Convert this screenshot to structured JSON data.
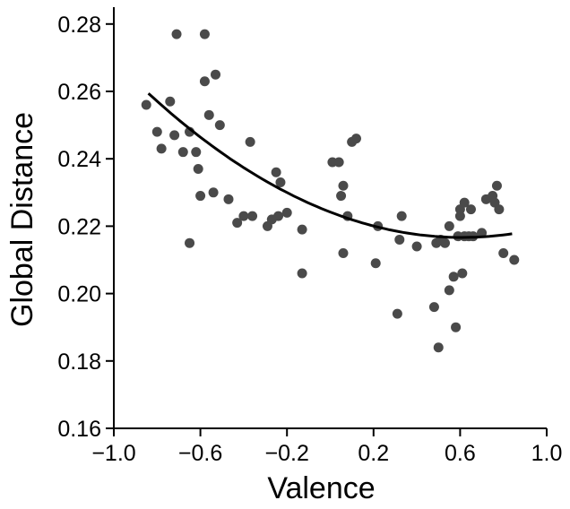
{
  "chart_data": {
    "type": "scatter",
    "title": "",
    "xlabel": "Valence",
    "ylabel": "Global Distance",
    "xlim": [
      -1.0,
      1.0
    ],
    "ylim": [
      0.16,
      0.285
    ],
    "xticks": [
      -1.0,
      -0.6,
      -0.2,
      0.2,
      0.6,
      1.0
    ],
    "xtick_labels": [
      "−1.0",
      "−0.6",
      "−0.2",
      "0.2",
      "0.6",
      "1.0"
    ],
    "yticks": [
      0.16,
      0.18,
      0.2,
      0.22,
      0.24,
      0.26,
      0.28
    ],
    "ytick_labels": [
      "0.16",
      "0.18",
      "0.20",
      "0.22",
      "0.24",
      "0.26",
      "0.28"
    ],
    "grid": false,
    "legend": "none",
    "colors": {
      "points": "#4a4a4a",
      "fit_line": "#000000",
      "axes": "#000000"
    },
    "points": [
      {
        "x": -0.85,
        "y": 0.256
      },
      {
        "x": -0.8,
        "y": 0.248
      },
      {
        "x": -0.78,
        "y": 0.243
      },
      {
        "x": -0.74,
        "y": 0.257
      },
      {
        "x": -0.72,
        "y": 0.247
      },
      {
        "x": -0.71,
        "y": 0.277
      },
      {
        "x": -0.68,
        "y": 0.242
      },
      {
        "x": -0.65,
        "y": 0.248
      },
      {
        "x": -0.65,
        "y": 0.215
      },
      {
        "x": -0.62,
        "y": 0.242
      },
      {
        "x": -0.61,
        "y": 0.237
      },
      {
        "x": -0.6,
        "y": 0.229
      },
      {
        "x": -0.58,
        "y": 0.263
      },
      {
        "x": -0.58,
        "y": 0.277
      },
      {
        "x": -0.56,
        "y": 0.253
      },
      {
        "x": -0.54,
        "y": 0.23
      },
      {
        "x": -0.53,
        "y": 0.265
      },
      {
        "x": -0.51,
        "y": 0.25
      },
      {
        "x": -0.47,
        "y": 0.228
      },
      {
        "x": -0.43,
        "y": 0.221
      },
      {
        "x": -0.4,
        "y": 0.223
      },
      {
        "x": -0.37,
        "y": 0.245
      },
      {
        "x": -0.36,
        "y": 0.223
      },
      {
        "x": -0.29,
        "y": 0.22
      },
      {
        "x": -0.27,
        "y": 0.222
      },
      {
        "x": -0.25,
        "y": 0.236
      },
      {
        "x": -0.24,
        "y": 0.223
      },
      {
        "x": -0.23,
        "y": 0.233
      },
      {
        "x": -0.2,
        "y": 0.224
      },
      {
        "x": -0.13,
        "y": 0.206
      },
      {
        "x": -0.13,
        "y": 0.219
      },
      {
        "x": 0.01,
        "y": 0.239
      },
      {
        "x": 0.04,
        "y": 0.239
      },
      {
        "x": 0.05,
        "y": 0.229
      },
      {
        "x": 0.06,
        "y": 0.232
      },
      {
        "x": 0.06,
        "y": 0.212
      },
      {
        "x": 0.08,
        "y": 0.223
      },
      {
        "x": 0.1,
        "y": 0.245
      },
      {
        "x": 0.12,
        "y": 0.246
      },
      {
        "x": 0.21,
        "y": 0.209
      },
      {
        "x": 0.22,
        "y": 0.22
      },
      {
        "x": 0.31,
        "y": 0.194
      },
      {
        "x": 0.32,
        "y": 0.216
      },
      {
        "x": 0.33,
        "y": 0.223
      },
      {
        "x": 0.4,
        "y": 0.214
      },
      {
        "x": 0.48,
        "y": 0.196
      },
      {
        "x": 0.49,
        "y": 0.215
      },
      {
        "x": 0.5,
        "y": 0.184
      },
      {
        "x": 0.51,
        "y": 0.216
      },
      {
        "x": 0.53,
        "y": 0.215
      },
      {
        "x": 0.55,
        "y": 0.22
      },
      {
        "x": 0.55,
        "y": 0.201
      },
      {
        "x": 0.57,
        "y": 0.205
      },
      {
        "x": 0.58,
        "y": 0.19
      },
      {
        "x": 0.59,
        "y": 0.217
      },
      {
        "x": 0.6,
        "y": 0.223
      },
      {
        "x": 0.6,
        "y": 0.225
      },
      {
        "x": 0.61,
        "y": 0.206
      },
      {
        "x": 0.62,
        "y": 0.217
      },
      {
        "x": 0.62,
        "y": 0.227
      },
      {
        "x": 0.64,
        "y": 0.217
      },
      {
        "x": 0.65,
        "y": 0.225
      },
      {
        "x": 0.66,
        "y": 0.217
      },
      {
        "x": 0.7,
        "y": 0.218
      },
      {
        "x": 0.72,
        "y": 0.228
      },
      {
        "x": 0.75,
        "y": 0.229
      },
      {
        "x": 0.76,
        "y": 0.227
      },
      {
        "x": 0.77,
        "y": 0.232
      },
      {
        "x": 0.78,
        "y": 0.225
      },
      {
        "x": 0.8,
        "y": 0.212
      },
      {
        "x": 0.85,
        "y": 0.21
      }
    ],
    "fit_line": {
      "type": "quadratic",
      "x_range": [
        -0.84,
        0.84
      ],
      "points": [
        {
          "x": -0.84,
          "y": 0.259
        },
        {
          "x": -0.6,
          "y": 0.247
        },
        {
          "x": -0.2,
          "y": 0.23
        },
        {
          "x": 0.2,
          "y": 0.22
        },
        {
          "x": 0.5,
          "y": 0.2165
        },
        {
          "x": 0.84,
          "y": 0.218
        }
      ]
    }
  }
}
